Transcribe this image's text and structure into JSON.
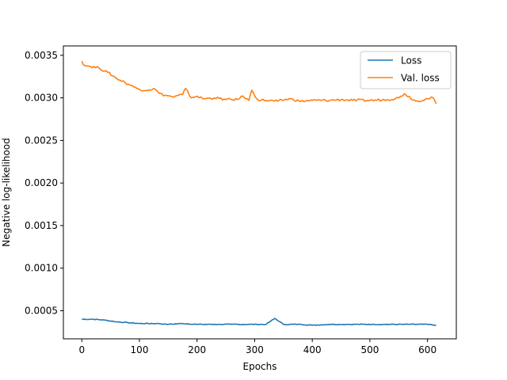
{
  "chart_data": {
    "type": "line",
    "xlabel": "Epochs",
    "ylabel": "Negative log-likelihood",
    "xlim": [
      -32,
      650
    ],
    "ylim": [
      0.00017,
      0.00361
    ],
    "x_ticks": [
      0,
      100,
      200,
      300,
      400,
      500,
      600
    ],
    "y_ticks": [
      0.0005,
      0.001,
      0.0015,
      0.002,
      0.0025,
      0.003,
      0.0035
    ],
    "y_tick_labels": [
      "0.0005",
      "0.0010",
      "0.0015",
      "0.0020",
      "0.0025",
      "0.0030",
      "0.0035"
    ],
    "grid": false,
    "legend_position": "top-right",
    "series": [
      {
        "name": "Loss",
        "color": "#1f77b4",
        "x": [
          0,
          20,
          40,
          60,
          80,
          100,
          130,
          150,
          175,
          200,
          230,
          260,
          290,
          320,
          335,
          350,
          380,
          400,
          430,
          460,
          500,
          530,
          560,
          600,
          615
        ],
        "values": [
          0.0004,
          0.0004,
          0.00039,
          0.00037,
          0.00036,
          0.00035,
          0.00035,
          0.00034,
          0.00035,
          0.00034,
          0.00034,
          0.00034,
          0.00034,
          0.00034,
          0.00041,
          0.00034,
          0.00034,
          0.00033,
          0.00034,
          0.00034,
          0.00034,
          0.00034,
          0.00034,
          0.00034,
          0.00033
        ]
      },
      {
        "name": "Val. loss",
        "color": "#ff7f0e",
        "x": [
          0,
          5,
          15,
          30,
          45,
          60,
          75,
          90,
          100,
          115,
          125,
          135,
          145,
          160,
          175,
          180,
          190,
          200,
          210,
          230,
          250,
          270,
          280,
          290,
          295,
          305,
          320,
          340,
          360,
          380,
          400,
          430,
          450,
          470,
          500,
          530,
          550,
          560,
          580,
          600,
          610,
          615
        ],
        "values": [
          0.00343,
          0.00338,
          0.00337,
          0.00335,
          0.0033,
          0.00323,
          0.00318,
          0.00313,
          0.0031,
          0.00309,
          0.00311,
          0.00305,
          0.00303,
          0.00301,
          0.00304,
          0.00311,
          0.003,
          0.00302,
          0.00299,
          0.003,
          0.00298,
          0.00298,
          0.00302,
          0.00297,
          0.00309,
          0.00298,
          0.00297,
          0.00296,
          0.00299,
          0.00296,
          0.00297,
          0.00297,
          0.00298,
          0.00297,
          0.00297,
          0.00298,
          0.003,
          0.00305,
          0.00296,
          0.00299,
          0.003,
          0.00293
        ]
      }
    ]
  }
}
